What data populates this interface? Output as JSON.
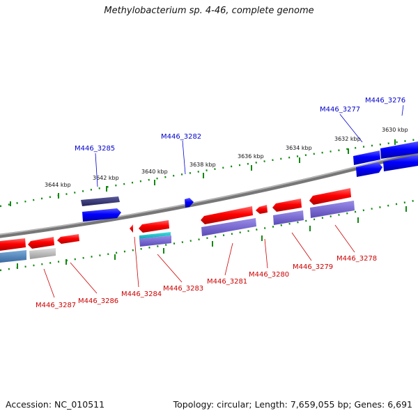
{
  "title": "Methylobacterium sp. 4-46, complete genome",
  "footer": {
    "accession": "Accession: NC_010511",
    "summary": "Topology: circular; Length: 7,659,055 bp; Genes: 6,691"
  },
  "scale_labels": [
    "3630 kbp",
    "3632 kbp",
    "3634 kbp",
    "3636 kbp",
    "3638 kbp",
    "3640 kbp",
    "3642 kbp",
    "3644 kbp"
  ],
  "upper_genes": [
    "M446_3276",
    "M446_3277",
    "M446_3282",
    "M446_3285"
  ],
  "lower_genes": [
    "M446_3278",
    "M446_3279",
    "M446_3280",
    "M446_3281",
    "M446_3283",
    "M446_3284",
    "M446_3286",
    "M446_3287"
  ],
  "colors": {
    "forward": "#ff0000",
    "reverse": "#0000ff",
    "forward_label": "#cc0000",
    "reverse_label": "#0000cc",
    "tick": "#118811",
    "backbone": "#888888"
  }
}
